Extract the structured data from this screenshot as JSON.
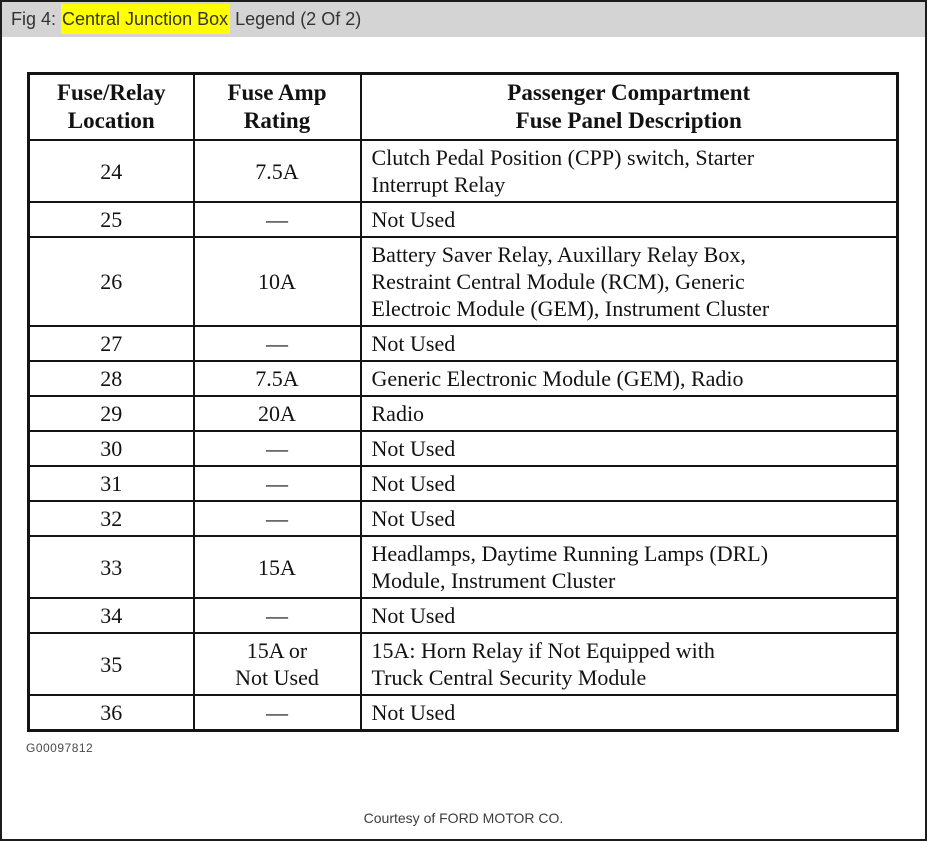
{
  "caption": {
    "prefix": "Fig 4: ",
    "highlight": "Central Junction Box",
    "suffix": " Legend (2 Of 2)"
  },
  "table": {
    "columns": [
      {
        "line1": "Fuse/Relay",
        "line2": "Location"
      },
      {
        "line1": "Fuse Amp",
        "line2": "Rating"
      },
      {
        "line1": "Passenger Compartment",
        "line2": "Fuse Panel Description"
      }
    ],
    "rows": [
      {
        "location": "24",
        "rating": "7.5A",
        "description": "Clutch Pedal Position (CPP) switch, Starter\nInterrupt Relay"
      },
      {
        "location": "25",
        "rating": "—",
        "description": "Not Used"
      },
      {
        "location": "26",
        "rating": "10A",
        "description": "Battery Saver Relay, Auxillary Relay Box,\nRestraint Central Module (RCM), Generic\nElectroic Module (GEM), Instrument Cluster"
      },
      {
        "location": "27",
        "rating": "—",
        "description": "Not Used"
      },
      {
        "location": "28",
        "rating": "7.5A",
        "description": "Generic Electronic Module (GEM), Radio"
      },
      {
        "location": "29",
        "rating": "20A",
        "description": "Radio"
      },
      {
        "location": "30",
        "rating": "—",
        "description": "Not Used"
      },
      {
        "location": "31",
        "rating": "—",
        "description": "Not Used"
      },
      {
        "location": "32",
        "rating": "—",
        "description": "Not Used"
      },
      {
        "location": "33",
        "rating": "15A",
        "description": "Headlamps, Daytime Running Lamps (DRL)\nModule, Instrument Cluster"
      },
      {
        "location": "34",
        "rating": "—",
        "description": "Not Used"
      },
      {
        "location": "35",
        "rating": "15A or\nNot Used",
        "description": "15A: Horn Relay if Not Equipped with\nTruck Central Security Module"
      },
      {
        "location": "36",
        "rating": "—",
        "description": "Not Used"
      }
    ]
  },
  "footer": {
    "figure_id": "G00097812",
    "courtesy": "Courtesy of FORD MOTOR CO."
  },
  "colors": {
    "caption_bar_bg": "#d4d4d4",
    "caption_highlight": "#ffff00",
    "table_border": "#141414",
    "page_bg": "#ffffff",
    "frame_border": "#1c1c1c"
  }
}
